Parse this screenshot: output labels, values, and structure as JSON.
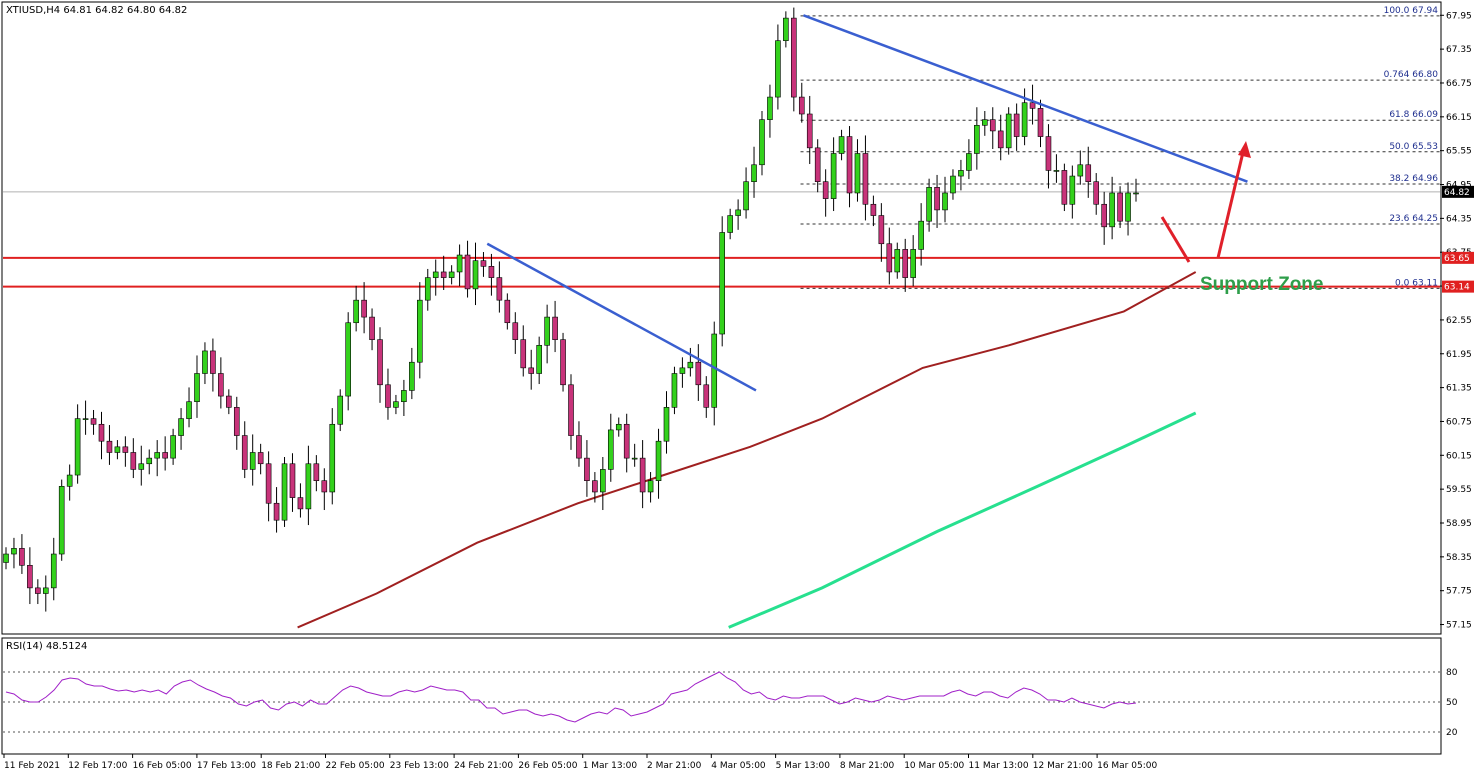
{
  "header": {
    "title": "XTIUSD,H4  64.81 64.82 64.80 64.82"
  },
  "rsi_panel": {
    "title": "RSI(14) 48.5124"
  },
  "annotation": {
    "support_zone": "Support Zone"
  },
  "price_tags": [
    {
      "label": "64.82",
      "value": 64.82,
      "color": "#000000",
      "text_color": "#ffffff"
    },
    {
      "label": "63.65",
      "value": 63.65,
      "color": "#e02020",
      "text_color": "#ffffff"
    },
    {
      "label": "63.14",
      "value": 63.14,
      "color": "#e02020",
      "text_color": "#ffffff"
    }
  ],
  "colors": {
    "bull": "#33d11c",
    "bear": "#c8337a",
    "ma100": "#a02020",
    "ma200": "#27e08f",
    "trendline": "#3a5fd0",
    "support_line": "#e02020",
    "arrow": "#e0202a",
    "rsi": "#a020c8"
  },
  "chart_data": [
    {
      "type": "candlestick",
      "title": "XTIUSD,H4",
      "ylim": [
        57.0,
        68.15
      ],
      "y_ticks": [
        "67.95",
        "67.35",
        "66.75",
        "66.15",
        "65.55",
        "64.95",
        "64.35",
        "63.75",
        "63.15",
        "62.55",
        "61.95",
        "61.35",
        "60.75",
        "60.15",
        "59.55",
        "58.95",
        "58.35",
        "57.75",
        "57.15"
      ],
      "x_ticks": [
        "11 Feb 2021",
        "12 Feb 17:00",
        "16 Feb 05:00",
        "17 Feb 13:00",
        "18 Feb 21:00",
        "22 Feb 05:00",
        "23 Feb 13:00",
        "24 Feb 21:00",
        "26 Feb 05:00",
        "1 Mar 13:00",
        "2 Mar 21:00",
        "4 Mar 05:00",
        "5 Mar 13:00",
        "8 Mar 21:00",
        "10 Mar 05:00",
        "11 Mar 13:00",
        "12 Mar 21:00",
        "16 Mar 05:00"
      ],
      "candles_close": [
        58.4,
        58.5,
        58.2,
        57.8,
        57.7,
        57.8,
        58.4,
        59.6,
        59.8,
        60.8,
        60.8,
        60.7,
        60.4,
        60.2,
        60.3,
        60.2,
        59.9,
        60.0,
        60.1,
        60.2,
        60.1,
        60.5,
        60.8,
        61.1,
        61.6,
        62.0,
        61.6,
        61.2,
        61.0,
        60.5,
        59.9,
        60.2,
        60.0,
        59.3,
        59.0,
        60.0,
        59.4,
        59.2,
        60.0,
        59.7,
        59.5,
        60.7,
        61.2,
        62.5,
        62.9,
        62.6,
        62.2,
        61.4,
        61.0,
        61.1,
        61.3,
        61.8,
        62.9,
        63.3,
        63.4,
        63.3,
        63.4,
        63.7,
        63.1,
        63.6,
        63.5,
        63.3,
        62.9,
        62.5,
        62.2,
        61.7,
        61.6,
        62.1,
        62.6,
        62.2,
        61.4,
        60.5,
        60.1,
        59.7,
        59.5,
        59.9,
        60.6,
        60.7,
        60.1,
        60.1,
        59.5,
        59.7,
        60.4,
        61.0,
        61.6,
        61.7,
        61.8,
        61.4,
        61.0,
        62.3,
        64.1,
        64.4,
        64.5,
        65.0,
        65.3,
        66.1,
        66.5,
        67.5,
        67.9,
        66.5,
        66.2,
        65.6,
        65.0,
        64.7,
        65.5,
        65.8,
        64.8,
        65.5,
        64.6,
        64.4,
        63.9,
        63.4,
        63.8,
        63.3,
        63.8,
        64.3,
        64.9,
        64.5,
        64.8,
        65.1,
        65.2,
        65.5,
        66.0,
        66.1,
        65.9,
        65.6,
        66.2,
        65.8,
        66.4,
        66.3,
        65.8,
        65.2,
        65.2,
        64.6,
        65.1,
        65.3,
        65.0,
        64.6,
        64.2,
        64.8,
        64.3,
        64.8,
        64.8
      ],
      "ma100_points": [
        [
          0.205,
          57.1
        ],
        [
          0.26,
          57.7
        ],
        [
          0.33,
          58.6
        ],
        [
          0.4,
          59.3
        ],
        [
          0.46,
          59.8
        ],
        [
          0.52,
          60.3
        ],
        [
          0.57,
          60.8
        ],
        [
          0.64,
          61.7
        ],
        [
          0.7,
          62.1
        ],
        [
          0.78,
          62.7
        ],
        [
          0.83,
          63.4
        ]
      ],
      "ma200_points": [
        [
          0.505,
          57.1
        ],
        [
          0.57,
          57.8
        ],
        [
          0.65,
          58.8
        ],
        [
          0.72,
          59.6
        ],
        [
          0.78,
          60.3
        ],
        [
          0.83,
          60.9
        ]
      ],
      "trendlines": [
        {
          "from": [
            0.337,
            63.9
          ],
          "to": [
            0.524,
            61.3
          ]
        },
        {
          "from": [
            0.557,
            67.95
          ],
          "to": [
            0.866,
            65.0
          ]
        }
      ],
      "support_lines": [
        63.65,
        63.14
      ],
      "current_price": 64.82,
      "fibonacci": {
        "x_range": [
          0.555,
          1.0
        ],
        "levels": [
          {
            "label": "100.0 67.94",
            "value": 67.94
          },
          {
            "label": "0.764 66.80",
            "value": 66.8
          },
          {
            "label": "61.8 66.09",
            "value": 66.09
          },
          {
            "label": "50.0 65.53",
            "value": 65.53
          },
          {
            "label": "38.2 64.96",
            "value": 64.96
          },
          {
            "label": "23.6 64.25",
            "value": 64.25
          },
          {
            "label": "0.0 63.11",
            "value": 63.11
          }
        ]
      }
    },
    {
      "type": "line",
      "title": "RSI(14) 48.5124",
      "ylim": [
        0,
        100
      ],
      "y_ticks": [
        "80",
        "50",
        "20"
      ],
      "levels": [
        80,
        50,
        20
      ],
      "values": [
        60,
        58,
        52,
        50,
        50,
        55,
        62,
        72,
        74,
        73,
        68,
        66,
        66,
        63,
        61,
        62,
        60,
        62,
        60,
        62,
        58,
        66,
        70,
        72,
        67,
        63,
        60,
        56,
        54,
        48,
        46,
        50,
        52,
        44,
        42,
        48,
        50,
        46,
        52,
        48,
        48,
        55,
        62,
        66,
        64,
        60,
        58,
        56,
        56,
        60,
        62,
        60,
        62,
        66,
        64,
        62,
        62,
        60,
        52,
        52,
        44,
        44,
        38,
        40,
        42,
        42,
        38,
        36,
        38,
        36,
        32,
        30,
        34,
        38,
        40,
        38,
        44,
        42,
        36,
        38,
        40,
        44,
        48,
        58,
        60,
        62,
        68,
        72,
        76,
        80,
        74,
        70,
        62,
        58,
        60,
        54,
        52,
        56,
        54,
        54,
        56,
        56,
        56,
        52,
        48,
        50,
        54,
        52,
        50,
        52,
        56,
        54,
        52,
        54,
        56,
        56,
        56,
        56,
        60,
        62,
        58,
        56,
        60,
        60,
        56,
        54,
        60,
        64,
        62,
        58,
        52,
        52,
        50,
        54,
        50,
        48,
        46,
        44,
        48,
        50,
        48,
        49
      ]
    }
  ]
}
